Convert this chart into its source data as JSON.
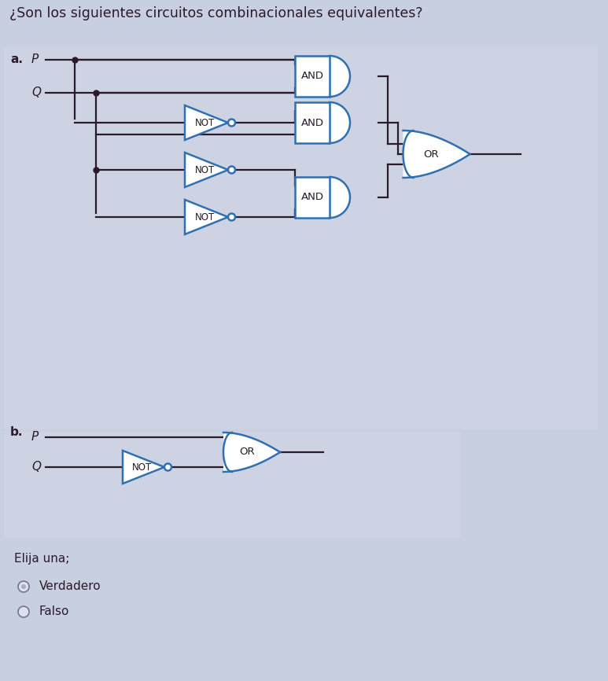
{
  "title": "¿Son los siguientes circuitos combinacionales equivalentes?",
  "title_fontsize": 12.5,
  "bg_color": "#c8cfe0",
  "panel_a_color": "#d4d8e8",
  "panel_b_color": "#d4d8e8",
  "text_color": "#2a1a2a",
  "gate_color": "#3070b0",
  "wire_color": "#2a1a2a",
  "dot_color": "#2a1a2a",
  "label_a": "a.",
  "label_b": "b.",
  "label_P": "P",
  "label_Q": "Q",
  "footer": "Elija una;",
  "opt1": "Verdadero",
  "opt2": "Falso"
}
